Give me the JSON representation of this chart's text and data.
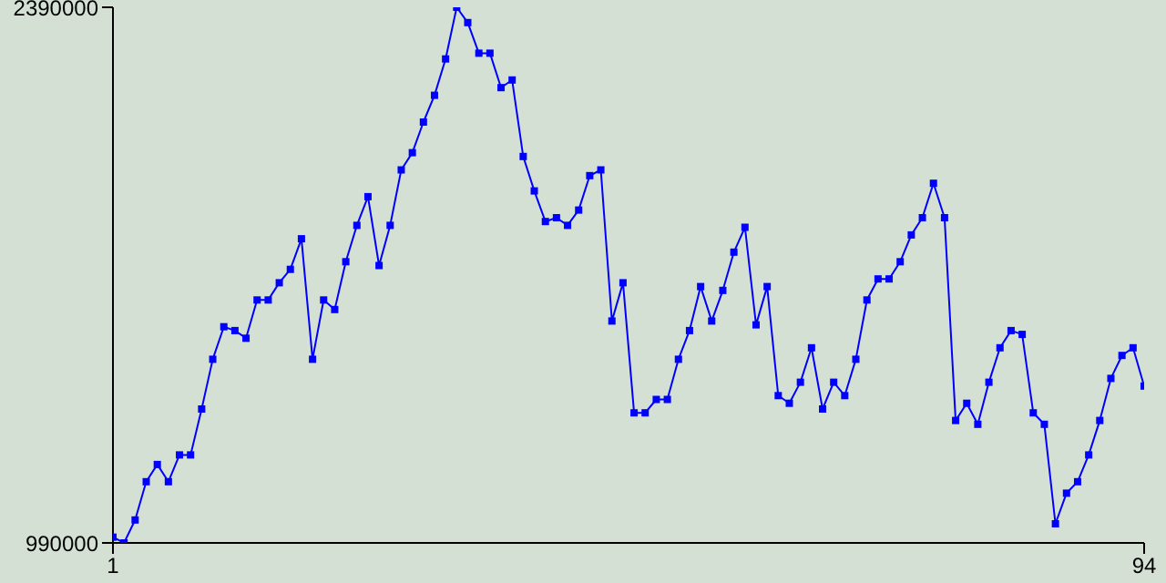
{
  "chart_data": {
    "type": "line",
    "x": [
      1,
      2,
      3,
      4,
      5,
      6,
      7,
      8,
      9,
      10,
      11,
      12,
      13,
      14,
      15,
      16,
      17,
      18,
      19,
      20,
      21,
      22,
      23,
      24,
      25,
      26,
      27,
      28,
      29,
      30,
      31,
      32,
      33,
      34,
      35,
      36,
      37,
      38,
      39,
      40,
      41,
      42,
      43,
      44,
      45,
      46,
      47,
      48,
      49,
      50,
      51,
      52,
      53,
      54,
      55,
      56,
      57,
      58,
      59,
      60,
      61,
      62,
      63,
      64,
      65,
      66,
      67,
      68,
      69,
      70,
      71,
      72,
      73,
      74,
      75,
      76,
      77,
      78,
      79,
      80,
      81,
      82,
      83,
      84,
      85,
      86,
      87,
      88,
      89,
      90,
      91,
      92,
      93,
      94
    ],
    "series": [
      {
        "color": "#0000ff",
        "values": [
          1005000,
          990000,
          1050000,
          1150000,
          1195000,
          1150000,
          1220000,
          1220000,
          1340000,
          1470000,
          1555000,
          1545000,
          1525000,
          1625000,
          1625000,
          1670000,
          1705000,
          1785000,
          1470000,
          1625000,
          1600000,
          1725000,
          1820000,
          1895000,
          1715000,
          1820000,
          1965000,
          2010000,
          2090000,
          2160000,
          2255000,
          2390000,
          2350000,
          2270000,
          2270000,
          2180000,
          2200000,
          2000000,
          1910000,
          1830000,
          1840000,
          1820000,
          1860000,
          1950000,
          1965000,
          1570000,
          1670000,
          1330000,
          1330000,
          1365000,
          1365000,
          1470000,
          1545000,
          1660000,
          1570000,
          1650000,
          1750000,
          1815000,
          1560000,
          1660000,
          1375000,
          1355000,
          1410000,
          1500000,
          1340000,
          1410000,
          1375000,
          1470000,
          1625000,
          1680000,
          1680000,
          1725000,
          1795000,
          1840000,
          1930000,
          1840000,
          1310000,
          1355000,
          1300000,
          1410000,
          1500000,
          1545000,
          1535000,
          1330000,
          1300000,
          1040000,
          1120000,
          1150000,
          1220000,
          1310000,
          1420000,
          1480000,
          1500000,
          1400000
        ]
      }
    ],
    "xlim": [
      1,
      94
    ],
    "xticks": [
      1,
      94
    ],
    "ylim": [
      990000,
      2390000
    ],
    "yticks": [
      990000,
      2390000
    ],
    "grid": false,
    "legend": false,
    "marker": "square",
    "line_style": "solid"
  }
}
